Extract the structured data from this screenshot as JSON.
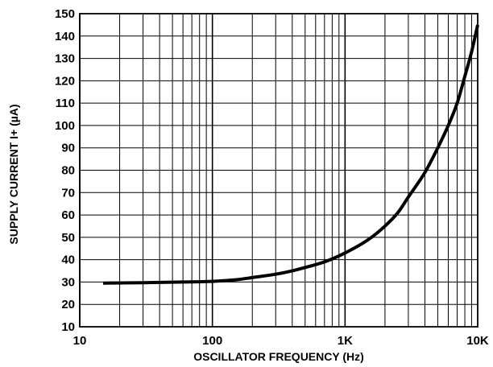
{
  "chart_data": {
    "type": "line",
    "xlabel": "OSCILLATOR FREQUENCY (Hz)",
    "ylabel": "SUPPLY CURRENT I+ (µA)",
    "x_scale": "log",
    "xlim": [
      10,
      10000
    ],
    "ylim": [
      10,
      150
    ],
    "x_ticks": [
      {
        "value": 10,
        "label": "10"
      },
      {
        "value": 100,
        "label": "100"
      },
      {
        "value": 1000,
        "label": "1K"
      },
      {
        "value": 10000,
        "label": "10K"
      }
    ],
    "y_ticks": [
      10,
      20,
      30,
      40,
      50,
      60,
      70,
      80,
      90,
      100,
      110,
      120,
      130,
      140,
      150
    ],
    "grid": true,
    "series": [
      {
        "color": "#000000",
        "points": [
          {
            "x": 15,
            "y": 29.5
          },
          {
            "x": 30,
            "y": 29.7
          },
          {
            "x": 60,
            "y": 30.0
          },
          {
            "x": 100,
            "y": 30.3
          },
          {
            "x": 150,
            "y": 31.0
          },
          {
            "x": 200,
            "y": 32.0
          },
          {
            "x": 300,
            "y": 33.5
          },
          {
            "x": 400,
            "y": 35.0
          },
          {
            "x": 500,
            "y": 36.5
          },
          {
            "x": 700,
            "y": 39.0
          },
          {
            "x": 1000,
            "y": 43.0
          },
          {
            "x": 1500,
            "y": 49.0
          },
          {
            "x": 2000,
            "y": 55.0
          },
          {
            "x": 2500,
            "y": 61.0
          },
          {
            "x": 3000,
            "y": 68.0
          },
          {
            "x": 4000,
            "y": 79.0
          },
          {
            "x": 5000,
            "y": 90.0
          },
          {
            "x": 6000,
            "y": 100.0
          },
          {
            "x": 7000,
            "y": 110.0
          },
          {
            "x": 8000,
            "y": 122.0
          },
          {
            "x": 9000,
            "y": 133.0
          },
          {
            "x": 10000,
            "y": 145.0
          }
        ]
      }
    ]
  }
}
